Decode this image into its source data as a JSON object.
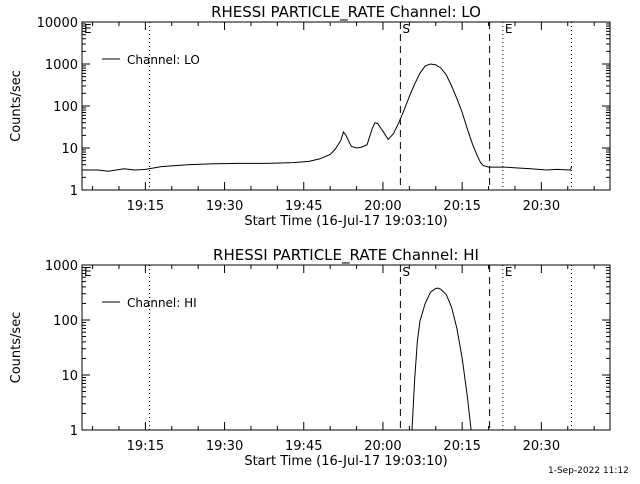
{
  "footer": {
    "timestamp": "1-Sep-2022 11:12"
  },
  "chart_data": [
    {
      "type": "line",
      "title": "RHESSI PARTICLE_RATE Channel: LO",
      "xlabel": "Start Time (16-Jul-17 19:03:10)",
      "ylabel": "Counts/sec",
      "yscale": "log",
      "ylim": [
        1,
        10000
      ],
      "xlim_minutes_after_1903": [
        0,
        100
      ],
      "xticks": [
        {
          "t": 12,
          "label": "19:15"
        },
        {
          "t": 27,
          "label": "19:30"
        },
        {
          "t": 42,
          "label": "19:45"
        },
        {
          "t": 57,
          "label": "20:00"
        },
        {
          "t": 72,
          "label": "20:15"
        },
        {
          "t": 87,
          "label": "20:30"
        }
      ],
      "yticks": [
        {
          "v": 1,
          "label": "1"
        },
        {
          "v": 10,
          "label": "10"
        },
        {
          "v": 100,
          "label": "100"
        },
        {
          "v": 1000,
          "label": "1000"
        },
        {
          "v": 10000,
          "label": "10000"
        }
      ],
      "legend": {
        "label": "Channel: LO",
        "position": "top-left"
      },
      "markers": [
        {
          "t": 0,
          "style": "dotted",
          "label": "E"
        },
        {
          "t": 12.8,
          "style": "dotted",
          "label": ""
        },
        {
          "t": 60.3,
          "style": "dashed",
          "label": "S"
        },
        {
          "t": 77.2,
          "style": "dashed",
          "label": ""
        },
        {
          "t": 79.7,
          "style": "dotted",
          "label": "E"
        },
        {
          "t": 92.7,
          "style": "dotted",
          "label": ""
        }
      ],
      "series": [
        {
          "name": "Channel: LO",
          "x": [
            0,
            3,
            5,
            8,
            10,
            12,
            15,
            20,
            25,
            30,
            35,
            40,
            43,
            45,
            47,
            48,
            49,
            49.5,
            50,
            51,
            52,
            53,
            54,
            55,
            55.5,
            56,
            57,
            58,
            59,
            60,
            61,
            62,
            63,
            64,
            65,
            66,
            67,
            68,
            69,
            70,
            71,
            72,
            73,
            74,
            75,
            75.5,
            76,
            77,
            80,
            85,
            88,
            90,
            92.5,
            92.7
          ],
          "y": [
            3.0,
            3.0,
            2.8,
            3.2,
            3.0,
            3.1,
            3.6,
            4.0,
            4.2,
            4.3,
            4.3,
            4.5,
            4.8,
            5.5,
            7.0,
            9.5,
            15,
            24,
            20,
            11,
            10,
            10.5,
            12,
            30,
            40,
            38,
            25,
            16,
            22,
            40,
            80,
            170,
            330,
            600,
            900,
            1000,
            950,
            800,
            550,
            300,
            150,
            70,
            28,
            12,
            6,
            4.5,
            3.8,
            3.5,
            3.5,
            3.2,
            3.0,
            3.1,
            3.0,
            3.5
          ]
        }
      ]
    },
    {
      "type": "line",
      "title": "RHESSI PARTICLE_RATE Channel: HI",
      "xlabel": "Start Time (16-Jul-17 19:03:10)",
      "ylabel": "Counts/sec",
      "yscale": "log",
      "ylim": [
        1,
        1000
      ],
      "xlim_minutes_after_1903": [
        0,
        100
      ],
      "xticks": [
        {
          "t": 12,
          "label": "19:15"
        },
        {
          "t": 27,
          "label": "19:30"
        },
        {
          "t": 42,
          "label": "19:45"
        },
        {
          "t": 57,
          "label": "20:00"
        },
        {
          "t": 72,
          "label": "20:15"
        },
        {
          "t": 87,
          "label": "20:30"
        }
      ],
      "yticks": [
        {
          "v": 1,
          "label": "1"
        },
        {
          "v": 10,
          "label": "10"
        },
        {
          "v": 100,
          "label": "100"
        },
        {
          "v": 1000,
          "label": "1000"
        }
      ],
      "legend": {
        "label": "Channel: HI",
        "position": "top-left"
      },
      "markers": [
        {
          "t": 0,
          "style": "dotted",
          "label": "E"
        },
        {
          "t": 12.8,
          "style": "dotted",
          "label": ""
        },
        {
          "t": 60.3,
          "style": "dashed",
          "label": "S"
        },
        {
          "t": 77.2,
          "style": "dashed",
          "label": ""
        },
        {
          "t": 79.7,
          "style": "dotted",
          "label": "E"
        },
        {
          "t": 92.7,
          "style": "dotted",
          "label": ""
        }
      ],
      "series": [
        {
          "name": "Channel: HI",
          "x": [
            62.5,
            63,
            63.5,
            64,
            65,
            66,
            67,
            67.5,
            68,
            69,
            70,
            71,
            72,
            73,
            73.7
          ],
          "y": [
            1.0,
            8,
            40,
            95,
            200,
            320,
            375,
            380,
            360,
            290,
            170,
            70,
            20,
            4,
            1.0
          ]
        }
      ]
    }
  ]
}
